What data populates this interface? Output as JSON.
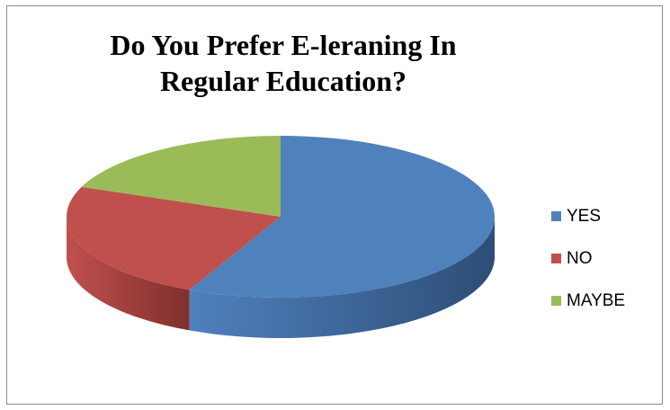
{
  "chart_data": {
    "type": "pie",
    "title_lines": [
      "Do You Prefer E-leraning In",
      "Regular Education?"
    ],
    "categories": [
      "YES",
      "NO",
      "MAYBE"
    ],
    "values": [
      57,
      24,
      19
    ],
    "colors": [
      "#4F81BD",
      "#C0504D",
      "#9BBB59"
    ],
    "side_colors": [
      "#2E4D77",
      "#7E302E",
      "#5F7A34"
    ],
    "style": "3d",
    "legend_position": "right"
  }
}
